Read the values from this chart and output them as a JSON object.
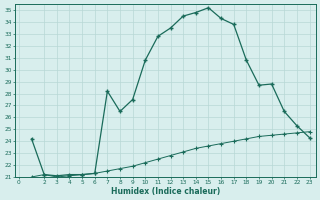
{
  "bg_color": "#d8eeed",
  "line_color": "#1a6b5a",
  "grid_color": "#b8d8d5",
  "xlabel": "Humidex (Indice chaleur)",
  "ylim": [
    21,
    35.5
  ],
  "xlim": [
    -0.3,
    23.5
  ],
  "yticks": [
    21,
    22,
    23,
    24,
    25,
    26,
    27,
    28,
    29,
    30,
    31,
    32,
    33,
    34,
    35
  ],
  "xticks": [
    0,
    2,
    3,
    4,
    5,
    6,
    7,
    8,
    9,
    10,
    11,
    12,
    13,
    14,
    15,
    16,
    17,
    18,
    19,
    20,
    21,
    22,
    23
  ],
  "curve1_x": [
    1,
    2,
    3,
    4,
    5,
    6,
    7,
    8,
    9,
    10,
    11,
    12,
    13,
    14,
    15,
    16,
    17,
    18,
    19,
    20,
    21,
    22,
    23
  ],
  "curve1_y": [
    24.2,
    21.2,
    21.1,
    21.2,
    21.2,
    21.3,
    28.2,
    26.5,
    27.5,
    30.8,
    32.8,
    33.5,
    34.5,
    34.8,
    35.2,
    34.3,
    33.8,
    30.8,
    28.7,
    28.8,
    26.5,
    25.3,
    24.3
  ],
  "curve2_x": [
    1,
    2,
    3,
    4,
    5,
    6,
    7,
    8,
    9,
    10,
    11,
    12,
    13,
    14,
    15,
    16,
    17,
    18,
    19,
    20,
    21,
    22,
    23
  ],
  "curve2_y": [
    21.0,
    21.2,
    21.0,
    21.1,
    21.2,
    21.3,
    21.5,
    21.7,
    21.9,
    22.2,
    22.5,
    22.8,
    23.1,
    23.4,
    23.6,
    23.8,
    24.0,
    24.2,
    24.4,
    24.5,
    24.6,
    24.7,
    24.8
  ]
}
